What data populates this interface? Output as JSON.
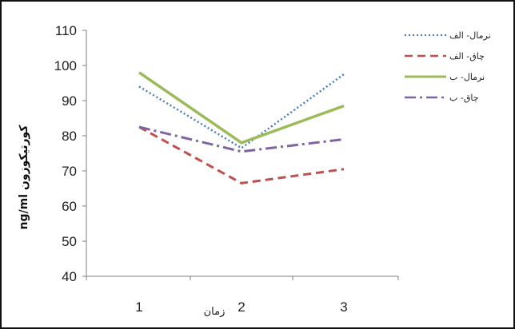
{
  "chart_data": {
    "type": "line",
    "title": "",
    "xlabel": "زمان",
    "ylabel": "ng/ml کورتیکوزون",
    "x": [
      1,
      2,
      3
    ],
    "ylim": [
      40,
      110
    ],
    "yticks": [
      40,
      50,
      60,
      70,
      80,
      90,
      100,
      110
    ],
    "grid": false,
    "legend": "top-right",
    "series": [
      {
        "name": "نرمال- الف",
        "values": [
          94,
          76.5,
          97.5
        ],
        "color": "#4a7ebb",
        "style": "dotted"
      },
      {
        "name": "چاق- الف",
        "values": [
          82.5,
          66.5,
          70.5
        ],
        "color": "#c0504d",
        "style": "dashed"
      },
      {
        "name": "نرمال- ب",
        "values": [
          98,
          78,
          88.5
        ],
        "color": "#9bbb59",
        "style": "solid"
      },
      {
        "name": "چاق- ب",
        "values": [
          82.5,
          75.5,
          79
        ],
        "color": "#8064a2",
        "style": "dashdot"
      }
    ]
  }
}
